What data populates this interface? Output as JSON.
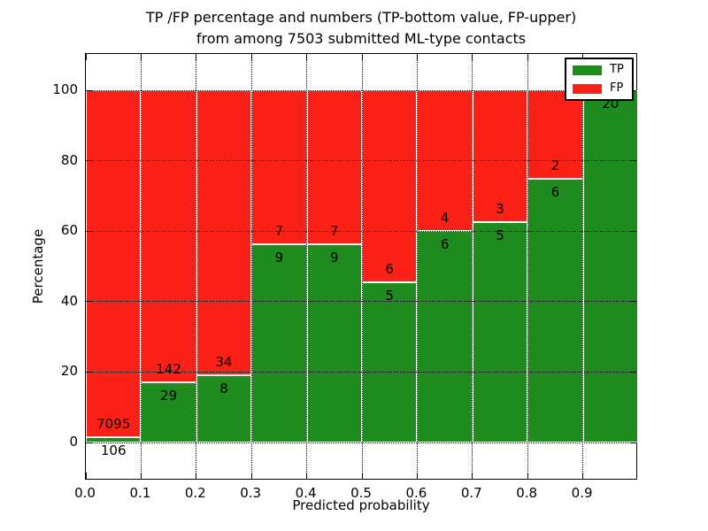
{
  "chart_data": {
    "type": "bar",
    "stacked": true,
    "title_line1": "TP /FP percentage and numbers (TP-bottom value, FP-upper)",
    "title_line2": "from among 7503 submitted ML-type contacts",
    "xlabel": "Predicted probability",
    "ylabel": "Percentage",
    "xlim": [
      0.0,
      1.0
    ],
    "ylim": [
      -10.5,
      110.5
    ],
    "grid": "dotted",
    "legend_position": "upper right",
    "x_tick_labels": [
      "0.0",
      "0.1",
      "0.2",
      "0.3",
      "0.4",
      "0.5",
      "0.6",
      "0.7",
      "0.8",
      "0.9"
    ],
    "y_tick_values": [
      0,
      20,
      40,
      60,
      80,
      100
    ],
    "colors": {
      "tp": "#1f8b1f",
      "fp": "#fb2116"
    },
    "legend_entries": [
      {
        "label": "TP",
        "color_key": "tp"
      },
      {
        "label": "FP",
        "color_key": "fp"
      }
    ],
    "bars": [
      {
        "x_start": 0.0,
        "x_end": 0.1,
        "tp_count": 106,
        "fp_count": 7095,
        "tp_pct": 1.47
      },
      {
        "x_start": 0.1,
        "x_end": 0.2,
        "tp_count": 29,
        "fp_count": 142,
        "tp_pct": 16.96
      },
      {
        "x_start": 0.2,
        "x_end": 0.3,
        "tp_count": 8,
        "fp_count": 34,
        "tp_pct": 19.05
      },
      {
        "x_start": 0.3,
        "x_end": 0.4,
        "tp_count": 9,
        "fp_count": 7,
        "tp_pct": 56.25
      },
      {
        "x_start": 0.4,
        "x_end": 0.5,
        "tp_count": 9,
        "fp_count": 7,
        "tp_pct": 56.25
      },
      {
        "x_start": 0.5,
        "x_end": 0.6,
        "tp_count": 5,
        "fp_count": 6,
        "tp_pct": 45.45
      },
      {
        "x_start": 0.6,
        "x_end": 0.7,
        "tp_count": 6,
        "fp_count": 4,
        "tp_pct": 60.0
      },
      {
        "x_start": 0.7,
        "x_end": 0.8,
        "tp_count": 5,
        "fp_count": 3,
        "tp_pct": 62.5
      },
      {
        "x_start": 0.8,
        "x_end": 0.9,
        "tp_count": 6,
        "fp_count": 2,
        "tp_pct": 75.0
      },
      {
        "x_start": 0.9,
        "x_end": 1.0,
        "tp_count": 20,
        "fp_count": null,
        "tp_pct": 100.0
      }
    ]
  }
}
